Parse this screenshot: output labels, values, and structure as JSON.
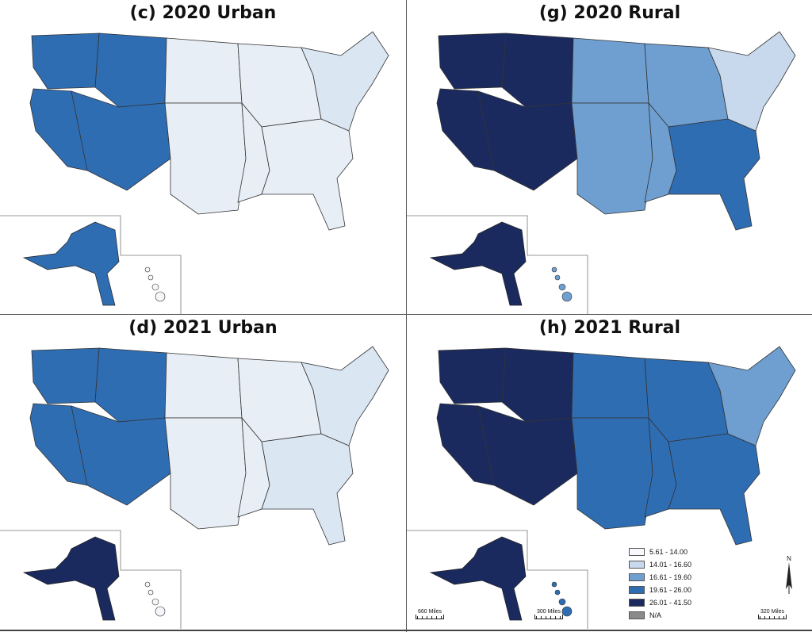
{
  "panels": [
    {
      "id": "c",
      "title": "(c) 2020 Urban",
      "colors": {
        "west": "#2f6db3",
        "ne": "#dbe6f3",
        "mid": "#e8eef6",
        "se": "#e8eef6",
        "ak": "#2f6db3",
        "hi": "#f4f6f9"
      }
    },
    {
      "id": "g",
      "title": "(g) 2020 Rural",
      "colors": {
        "west": "#1b2a5e",
        "ne": "#c8d9ee",
        "mid": "#6e9fd0",
        "se": "#2f6db3",
        "ak": "#1b2a5e",
        "hi": "#6e9fd0"
      }
    },
    {
      "id": "d",
      "title": "(d) 2021 Urban",
      "colors": {
        "west": "#2f6db3",
        "ne": "#dbe6f3",
        "mid": "#e8eef6",
        "se": "#dbe6f3",
        "ak": "#1b2a5e",
        "hi": "#f4f6f9"
      }
    },
    {
      "id": "h",
      "title": "(h) 2021 Rural",
      "colors": {
        "west": "#1b2a5e",
        "ne": "#6e9fd0",
        "mid": "#2f6db3",
        "se": "#2f6db3",
        "ak": "#1b2a5e",
        "hi": "#2f6db3"
      }
    }
  ],
  "legend": {
    "items": [
      {
        "label": "5.61 - 14.00",
        "color": "#f7f9fc"
      },
      {
        "label": "14.01 - 16.60",
        "color": "#c8d9ee"
      },
      {
        "label": "16.61 - 19.60",
        "color": "#6e9fd0"
      },
      {
        "label": "19.61 - 26.00",
        "color": "#2f6db3"
      },
      {
        "label": "26.01 - 41.50",
        "color": "#1b2a5e"
      },
      {
        "label": "N/A",
        "color": "#8a8a8a"
      }
    ]
  },
  "scales": {
    "alaska": "660 Miles",
    "hawaii": "300 Miles",
    "conus": "320 Miles"
  },
  "north_label": "N"
}
